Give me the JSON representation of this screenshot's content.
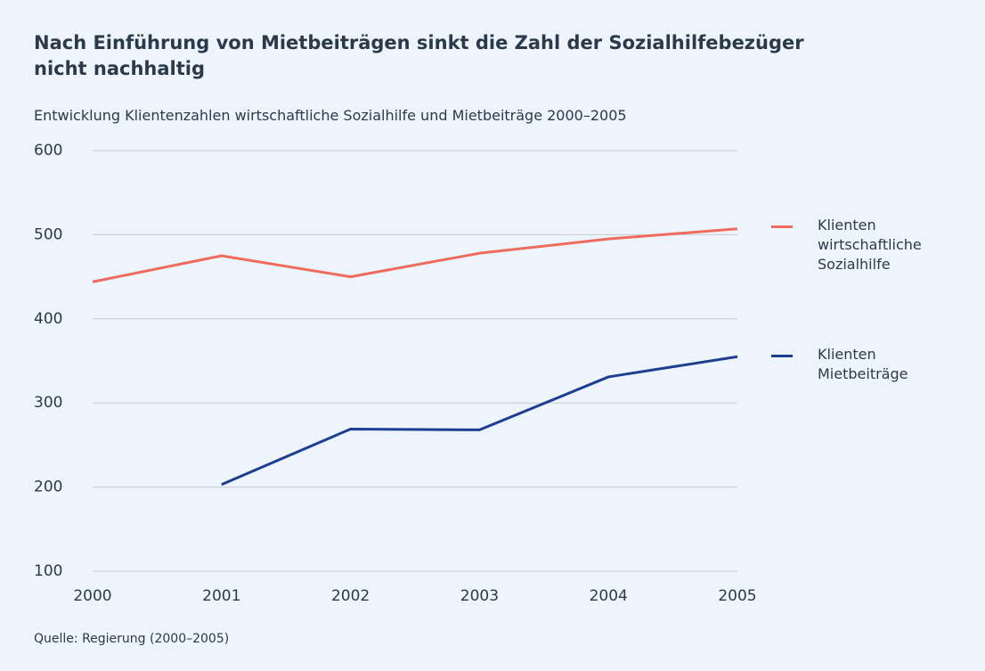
{
  "chart_data": {
    "type": "line",
    "title": "Nach Einführung von Mietbeiträgen sinkt die Zahl der Sozialhilfebezüger nicht nachhaltig",
    "subtitle": "Entwicklung Klientenzahlen wirtschaftliche Sozialhilfe und Mietbeiträge 2000–2005",
    "source": "Quelle: Regierung (2000–2005)",
    "categories": [
      "2000",
      "2001",
      "2002",
      "2003",
      "2004",
      "2005"
    ],
    "series": [
      {
        "name": "Klienten wirtschaftliche Sozialhilfe",
        "color": "#ee6b5d",
        "values": [
          444,
          475,
          450,
          478,
          495,
          507
        ]
      },
      {
        "name": "Klienten Mietbeiträge",
        "color": "#1e3f91",
        "values": [
          null,
          203,
          269,
          268,
          331,
          355
        ]
      }
    ],
    "ylim": [
      100,
      600
    ],
    "yticks": [
      100,
      200,
      300,
      400,
      500,
      600
    ],
    "grid": true
  }
}
